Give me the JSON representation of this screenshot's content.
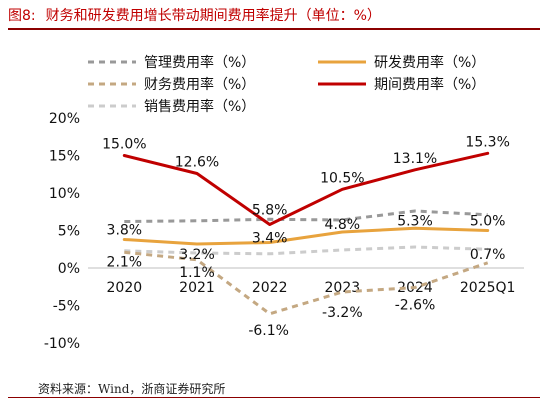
{
  "figure": {
    "number": "图8:",
    "title": "财务和研发费用增长带动期间费用率提升（单位：%）",
    "source": "资料来源：Wind，浙商证券研究所"
  },
  "chart_data": {
    "type": "line",
    "categories": [
      "2020",
      "2021",
      "2022",
      "2023",
      "2024",
      "2025Q1"
    ],
    "ylim": [
      -10,
      20
    ],
    "yticks": [
      -10,
      -5,
      0,
      5,
      10,
      15,
      20
    ],
    "ytick_labels": [
      "-10%",
      "-5%",
      "0%",
      "5%",
      "10%",
      "15%",
      "20%"
    ],
    "legend_position": "top",
    "grid": false,
    "series": [
      {
        "name": "管理费用率（%）",
        "color": "#999999",
        "dash": "dashed",
        "values": [
          6.2,
          6.3,
          6.5,
          6.4,
          7.6,
          7.1
        ],
        "labels": [
          null,
          null,
          null,
          null,
          null,
          null
        ]
      },
      {
        "name": "研发费用率（%）",
        "color": "#e8a33d",
        "dash": "solid",
        "values": [
          3.8,
          3.2,
          3.4,
          4.8,
          5.3,
          5.0
        ],
        "labels": [
          "3.8%",
          "3.2%",
          "3.4%",
          "4.8%",
          "5.3%",
          "5.0%"
        ]
      },
      {
        "name": "财务费用率（%）",
        "color": "#c4a882",
        "dash": "dashed",
        "values": [
          2.1,
          1.1,
          -6.1,
          -3.2,
          -2.6,
          0.7
        ],
        "labels": [
          "2.1%",
          "1.1%",
          "-6.1%",
          "-3.2%",
          "-2.6%",
          "0.7%"
        ]
      },
      {
        "name": "期间费用率（%）",
        "color": "#c00000",
        "dash": "solid",
        "values": [
          15.0,
          12.6,
          5.8,
          10.5,
          13.1,
          15.3
        ],
        "labels": [
          "15.0%",
          "12.6%",
          "5.8%",
          "10.5%",
          "13.1%",
          "15.3%"
        ]
      },
      {
        "name": "销售费用率（%）",
        "color": "#cccccc",
        "dash": "dashed",
        "values": [
          2.3,
          2.0,
          1.9,
          2.4,
          2.8,
          2.5
        ],
        "labels": [
          null,
          null,
          null,
          null,
          null,
          null
        ]
      }
    ]
  }
}
